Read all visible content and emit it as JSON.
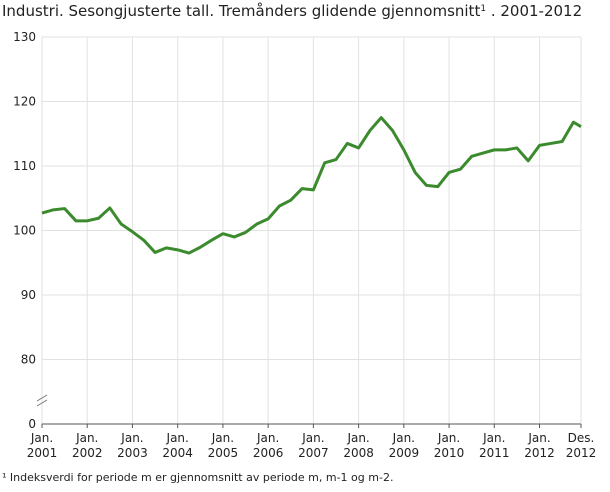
{
  "chart_data": {
    "type": "line",
    "title": "Industri. Sesongjusterte tall. Tremånders glidende gjennomsnitt",
    "title_note_mark": "1",
    "title_suffix": " . 2001-2012",
    "footnote": "¹ Indeksverdi for periode m er gjennomsnitt av periode m, m-1 og m-2.",
    "x": [
      2001,
      2001.25,
      2001.5,
      2001.75,
      2002,
      2002.25,
      2002.5,
      2002.75,
      2003,
      2003.25,
      2003.5,
      2003.75,
      2004,
      2004.25,
      2004.5,
      2004.75,
      2005,
      2005.25,
      2005.5,
      2005.75,
      2006,
      2006.25,
      2006.5,
      2006.75,
      2007,
      2007.25,
      2007.5,
      2007.75,
      2008,
      2008.25,
      2008.5,
      2008.75,
      2009,
      2009.25,
      2009.5,
      2009.75,
      2010,
      2010.25,
      2010.5,
      2010.75,
      2011,
      2011.25,
      2011.5,
      2011.75,
      2012,
      2012.25,
      2012.5,
      2012.75,
      2012.917
    ],
    "series": [
      {
        "color": "#3c8a2e",
        "values": [
          102.7,
          103.2,
          103.4,
          101.5,
          101.5,
          101.9,
          103.5,
          101.0,
          99.8,
          98.5,
          96.6,
          97.3,
          97.0,
          96.5,
          97.4,
          98.5,
          99.5,
          99.0,
          99.7,
          101.0,
          101.8,
          103.8,
          104.7,
          106.5,
          106.3,
          110.5,
          111.0,
          113.5,
          112.8,
          115.5,
          117.5,
          115.5,
          112.5,
          109.0,
          107.0,
          106.8,
          109.0,
          109.5,
          111.5,
          112.0,
          112.5,
          112.5,
          112.8,
          110.8,
          113.2,
          113.5,
          113.8,
          116.8,
          116.1
        ]
      }
    ],
    "xlim": [
      2001,
      2012.917
    ],
    "xticks": [
      {
        "value": 2001,
        "label": "Jan. 2001"
      },
      {
        "value": 2002,
        "label": "Jan. 2002"
      },
      {
        "value": 2003,
        "label": "Jan. 2003"
      },
      {
        "value": 2004,
        "label": "Jan. 2004"
      },
      {
        "value": 2005,
        "label": "Jan. 2005"
      },
      {
        "value": 2006,
        "label": "Jan. 2006"
      },
      {
        "value": 2007,
        "label": "Jan. 2007"
      },
      {
        "value": 2008,
        "label": "Jan. 2008"
      },
      {
        "value": 2009,
        "label": "Jan. 2009"
      },
      {
        "value": 2010,
        "label": "Jan. 2010"
      },
      {
        "value": 2011,
        "label": "Jan. 2011"
      },
      {
        "value": 2012,
        "label": "Jan. 2012"
      },
      {
        "value": 2012.917,
        "label": "Des. 2012"
      }
    ],
    "ylim": [
      0,
      130
    ],
    "yticks": [
      0,
      80,
      90,
      100,
      110,
      120,
      130
    ],
    "axis_break": true,
    "grid": true
  }
}
